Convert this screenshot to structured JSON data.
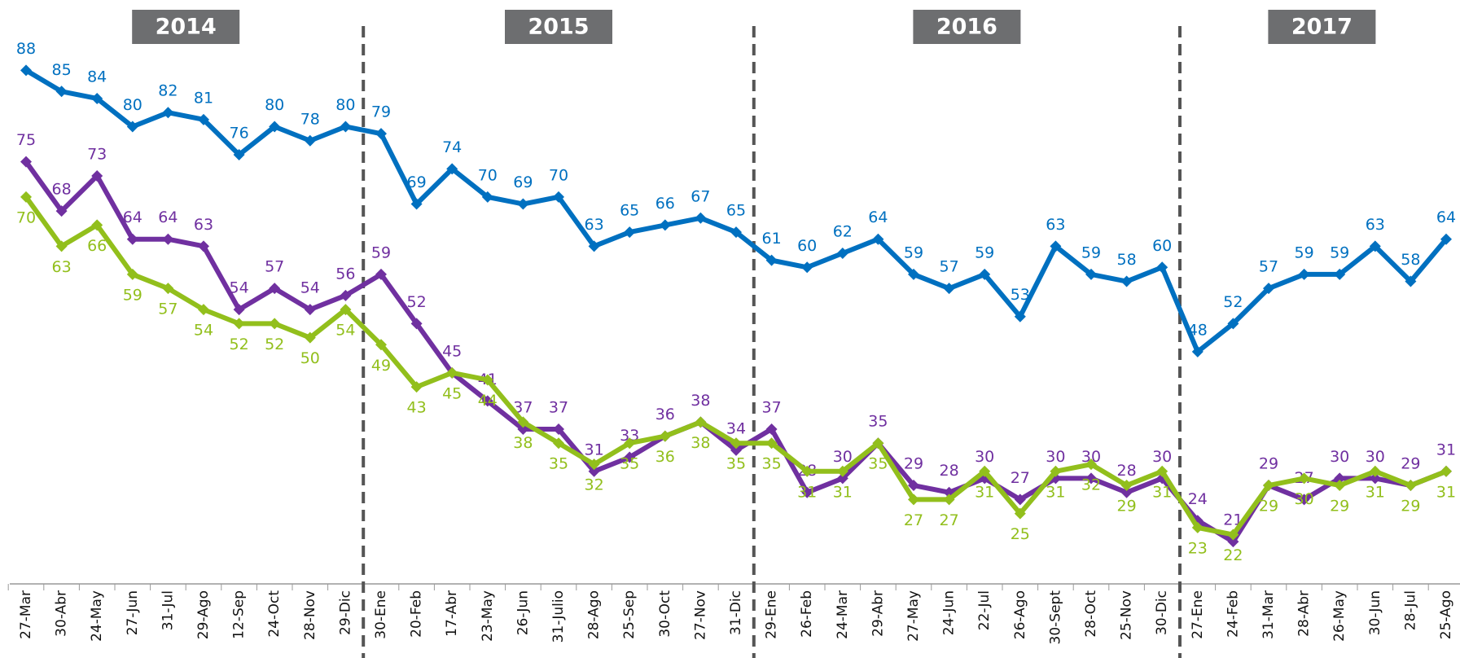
{
  "chart_data": {
    "type": "line",
    "categories": [
      "27-Mar",
      "30-Abr",
      "24-May",
      "27-Jun",
      "31-Jul",
      "29-Ago",
      "12-Sep",
      "24-Oct",
      "28-Nov",
      "29-Dic",
      "30-Ene",
      "20-Feb",
      "17-Abr",
      "23-May",
      "26-Jun",
      "31-Julio",
      "28-Ago",
      "25-Sep",
      "30-Oct",
      "27-Nov",
      "31-Dic",
      "29-Ene",
      "26-Feb",
      "24-Mar",
      "29-Abr",
      "27-May",
      "24-Jun",
      "22-Jul",
      "26-Ago",
      "30-Sept",
      "28-Oct",
      "25-Nov",
      "30-Dic",
      "27-Ene",
      "24-Feb",
      "31-Mar",
      "28-Abr",
      "26-May",
      "30-Jun",
      "28-Jul",
      "25-Ago"
    ],
    "year_labels": [
      "2014",
      "2015",
      "2016",
      "2017"
    ],
    "ylim": [
      15,
      98
    ],
    "series": [
      {
        "color": "#0070c0",
        "values": [
          88,
          85,
          84,
          80,
          82,
          81,
          76,
          80,
          78,
          80,
          79,
          69,
          74,
          70,
          69,
          70,
          63,
          65,
          66,
          67,
          65,
          61,
          60,
          62,
          64,
          59,
          57,
          59,
          53,
          63,
          59,
          58,
          60,
          48,
          52,
          57,
          59,
          59,
          63,
          58,
          64
        ]
      },
      {
        "color": "#7030a0",
        "values": [
          75,
          68,
          73,
          64,
          64,
          63,
          54,
          57,
          54,
          56,
          59,
          52,
          45,
          41,
          37,
          37,
          31,
          33,
          36,
          38,
          34,
          37,
          28,
          30,
          35,
          29,
          28,
          30,
          27,
          30,
          30,
          28,
          30,
          24,
          21,
          29,
          27,
          30,
          30,
          29,
          31
        ]
      },
      {
        "color": "#92bf1c",
        "values": [
          70,
          63,
          66,
          59,
          57,
          54,
          52,
          52,
          50,
          54,
          49,
          43,
          45,
          44,
          38,
          35,
          32,
          35,
          36,
          38,
          35,
          35,
          31,
          31,
          35,
          27,
          27,
          31,
          25,
          31,
          32,
          29,
          31,
          23,
          22,
          29,
          30,
          29,
          31,
          29,
          31
        ]
      }
    ]
  }
}
